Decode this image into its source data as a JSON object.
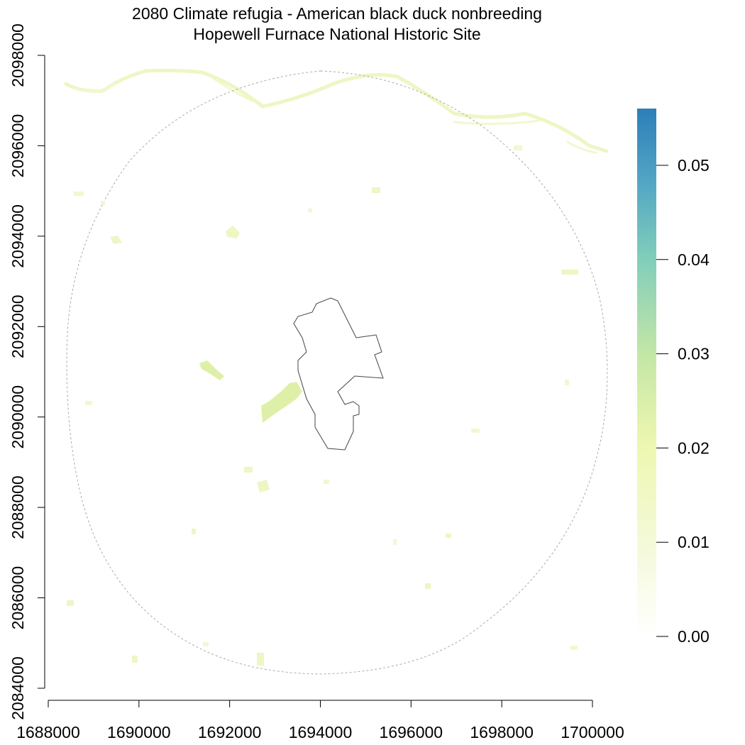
{
  "title": {
    "line1": "2080 Climate refugia - American black duck nonbreeding",
    "line2": "Hopewell Furnace National Historic Site"
  },
  "x_axis": {
    "ticks": [
      "1688000",
      "1690000",
      "1692000",
      "1694000",
      "1696000",
      "1698000",
      "1700000"
    ]
  },
  "y_axis": {
    "ticks": [
      "2084000",
      "2086000",
      "2088000",
      "2090000",
      "2092000",
      "2094000",
      "2096000",
      "2098000"
    ]
  },
  "legend": {
    "ticks": [
      "0.00",
      "0.01",
      "0.02",
      "0.03",
      "0.04",
      "0.05"
    ],
    "colors": [
      "#ffffff",
      "#f4f9d8",
      "#eef7b0",
      "#c2e6a6",
      "#7fcdbb",
      "#53a6c4",
      "#2c7fb8"
    ]
  },
  "map_colors": {
    "river": "#f1f8cf",
    "patch_light": "#eef6c4",
    "patch_medium": "#def0a8",
    "park_outline": "#444444",
    "buffer_outline": "#aaaaaa"
  }
}
